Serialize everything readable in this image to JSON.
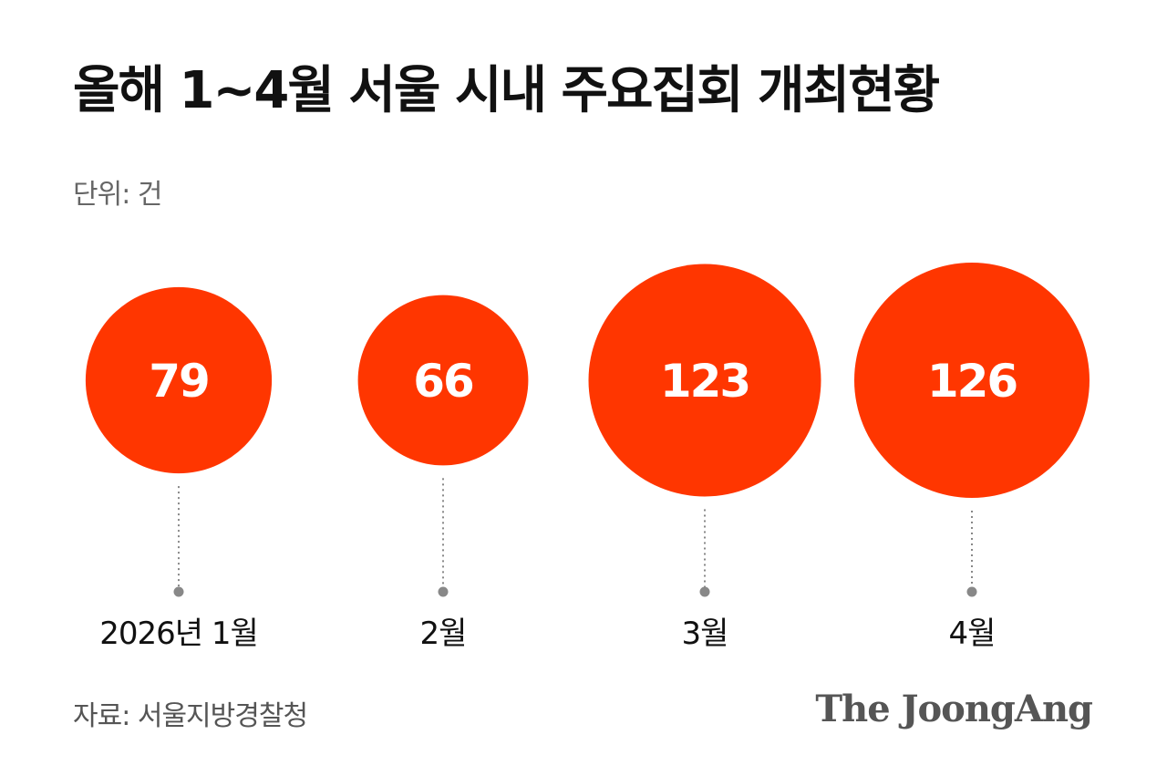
{
  "header": {
    "title": "올해 1~4월 서울 시내 주요집회 개최현황",
    "unit": "단위: 건"
  },
  "footer": {
    "source": "자료: 서울지방경찰청",
    "logo": "The JoongAng"
  },
  "colors": {
    "bubble": "#ff3600",
    "bubble_text": "#ffffff",
    "connector": "#888888",
    "category_text": "#111111"
  },
  "chart_data": {
    "type": "bubble",
    "title": "올해 1~4월 서울 시내 주요집회 개최현황",
    "unit": "단위: 건",
    "categories": [
      "2026년 1월",
      "2월",
      "3월",
      "4월"
    ],
    "values": [
      79,
      66,
      123,
      126
    ],
    "data_labels": [
      "79",
      "66",
      "123",
      "126"
    ]
  }
}
